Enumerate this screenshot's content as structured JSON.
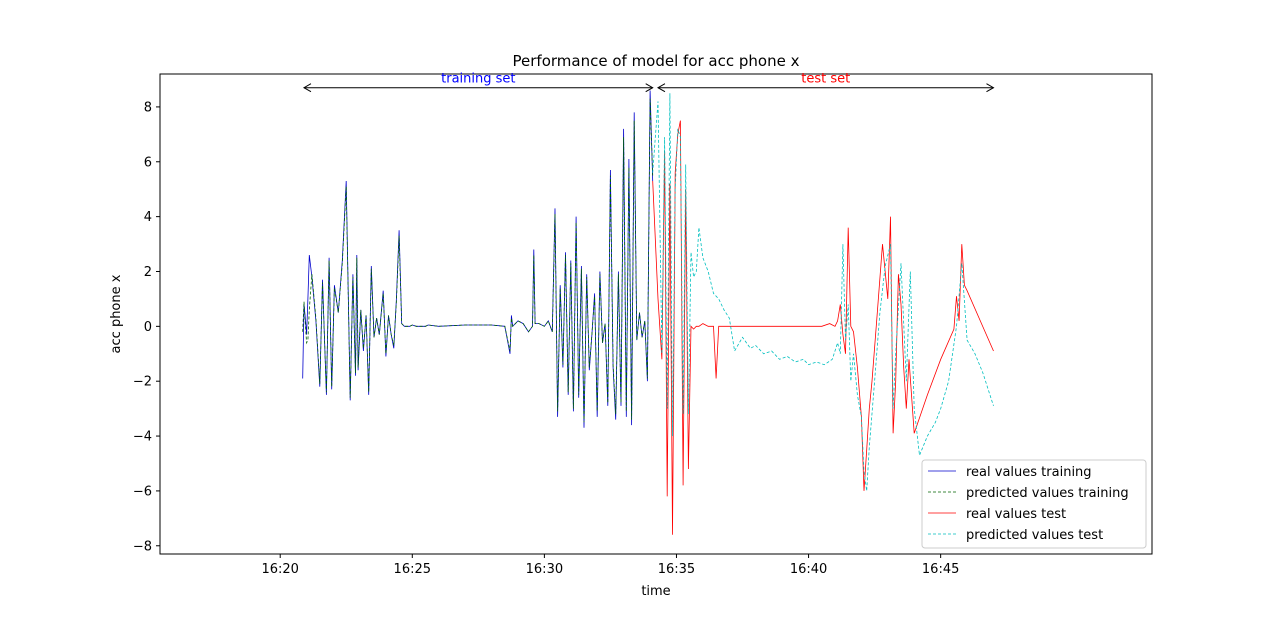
{
  "chart_data": {
    "type": "line",
    "title": "Performance of model for acc phone x",
    "xlabel": "time",
    "ylabel": "acc phone x",
    "x_unit": "minutes after 16:00",
    "xlim": [
      15.45,
      53.0
    ],
    "ylim": [
      -8.3,
      9.2
    ],
    "xticks": [
      20,
      25,
      30,
      35,
      40,
      45
    ],
    "xtick_labels": [
      "16:20",
      "16:25",
      "16:30",
      "16:35",
      "16:40",
      "16:45"
    ],
    "yticks": [
      -8,
      -6,
      -4,
      -2,
      0,
      2,
      4,
      6,
      8
    ],
    "ytick_labels": [
      "−8",
      "−6",
      "−4",
      "−2",
      "0",
      "2",
      "4",
      "6",
      "8"
    ],
    "grid": false,
    "legend": {
      "position": "lower-right",
      "entries": [
        "real values training",
        "predicted values training",
        "real values test",
        "predicted values test"
      ]
    },
    "annotations": [
      {
        "text": "training set",
        "color": "#0000ff",
        "x_start": 20.9,
        "x_end": 34.1,
        "y": 8.7
      },
      {
        "text": "test set",
        "color": "#ff0000",
        "x_start": 34.3,
        "x_end": 47.0,
        "y": 8.7
      }
    ],
    "series": [
      {
        "name": "real values training",
        "color": "#0000cc",
        "dash": "",
        "x": [
          20.85,
          20.9,
          20.95,
          21.0,
          21.05,
          21.1,
          21.2,
          21.35,
          21.5,
          21.6,
          21.75,
          21.85,
          21.95,
          22.05,
          22.2,
          22.35,
          22.5,
          22.65,
          22.75,
          22.85,
          22.9,
          22.95,
          23.05,
          23.15,
          23.25,
          23.35,
          23.45,
          23.55,
          23.65,
          23.75,
          23.9,
          24.0,
          24.1,
          24.2,
          24.3,
          24.4,
          24.5,
          24.6,
          24.7,
          24.8,
          24.9,
          25.0,
          25.15,
          25.3,
          25.4,
          25.5,
          25.6,
          26.0,
          27.0,
          28.0,
          28.5,
          28.7,
          28.75,
          28.8,
          29.0,
          29.2,
          29.4,
          29.55,
          29.6,
          29.65,
          29.8,
          30.0,
          30.15,
          30.3,
          30.4,
          30.5,
          30.6,
          30.7,
          30.8,
          30.9,
          31.0,
          31.1,
          31.2,
          31.3,
          31.4,
          31.5,
          31.6,
          31.7,
          31.8,
          31.9,
          32.0,
          32.1,
          32.2,
          32.3,
          32.4,
          32.5,
          32.6,
          32.7,
          32.8,
          32.9,
          33.0,
          33.1,
          33.2,
          33.3,
          33.4,
          33.5,
          33.6,
          33.7,
          33.8,
          33.9,
          34.0,
          34.1
        ],
        "y": [
          -1.9,
          0.8,
          0.3,
          -0.3,
          1.0,
          2.6,
          1.8,
          0.2,
          -2.2,
          1.7,
          -2.5,
          2.5,
          -2.3,
          1.5,
          0.5,
          2.4,
          5.3,
          -2.7,
          1.9,
          -1.8,
          2.6,
          -1.6,
          0.6,
          -0.9,
          0.4,
          -2.5,
          2.2,
          -0.4,
          0.3,
          -0.3,
          1.3,
          -1.1,
          0.4,
          -0.3,
          -0.8,
          1.0,
          3.5,
          0.1,
          0.0,
          0.0,
          0.0,
          0.05,
          0.0,
          0.0,
          0.0,
          0.0,
          0.05,
          0.0,
          0.05,
          0.05,
          0.0,
          -1.0,
          0.4,
          0.0,
          0.2,
          0.1,
          -0.2,
          0.0,
          2.8,
          0.1,
          0.1,
          0.0,
          0.2,
          -0.2,
          4.3,
          -3.3,
          1.5,
          -1.5,
          2.7,
          -2.5,
          2.4,
          -3.1,
          4.0,
          -2.6,
          2.2,
          -3.7,
          1.9,
          -1.6,
          -0.3,
          1.2,
          -3.3,
          2.0,
          -0.6,
          0.1,
          -2.9,
          5.7,
          -1.5,
          -3.4,
          2.0,
          -2.9,
          7.2,
          -3.3,
          6.1,
          -3.6,
          7.8,
          -0.5,
          0.5,
          -0.4,
          0.2,
          -2.0,
          8.6,
          5.3
        ]
      },
      {
        "name": "predicted values training",
        "color": "#006400",
        "dash": "3,2",
        "x": [
          20.85,
          20.9,
          20.95,
          21.0,
          21.05,
          21.1,
          21.2,
          21.35,
          21.5,
          21.6,
          21.75,
          21.85,
          21.95,
          22.05,
          22.2,
          22.35,
          22.5,
          22.65,
          22.75,
          22.85,
          22.9,
          22.95,
          23.05,
          23.15,
          23.25,
          23.35,
          23.45,
          23.55,
          23.65,
          23.75,
          23.9,
          24.0,
          24.1,
          24.2,
          24.3,
          24.4,
          24.5,
          24.6,
          24.7,
          24.8,
          24.9,
          25.0,
          25.15,
          25.3,
          25.4,
          25.5,
          25.6,
          26.0,
          27.0,
          28.0,
          28.5,
          28.7,
          28.75,
          28.8,
          29.0,
          29.2,
          29.4,
          29.55,
          29.6,
          29.65,
          29.8,
          30.0,
          30.15,
          30.3,
          30.4,
          30.5,
          30.6,
          30.7,
          30.8,
          30.9,
          31.0,
          31.1,
          31.2,
          31.3,
          31.4,
          31.5,
          31.6,
          31.7,
          31.8,
          31.9,
          32.0,
          32.1,
          32.2,
          32.3,
          32.4,
          32.5,
          32.6,
          32.7,
          32.8,
          32.9,
          33.0,
          33.1,
          33.2,
          33.3,
          33.4,
          33.5,
          33.6,
          33.7,
          33.8,
          33.9,
          34.0,
          34.1
        ],
        "y": [
          -0.2,
          0.9,
          0.1,
          -0.6,
          -0.5,
          0.6,
          1.9,
          0.3,
          -2.1,
          1.6,
          -2.4,
          2.4,
          -2.2,
          1.4,
          0.5,
          2.3,
          5.1,
          -2.6,
          1.8,
          -1.7,
          2.5,
          -1.5,
          0.6,
          -0.8,
          0.4,
          -2.4,
          2.1,
          -0.4,
          0.3,
          -0.3,
          1.2,
          -1.0,
          0.4,
          -0.3,
          -0.7,
          0.9,
          3.3,
          0.1,
          0.0,
          0.0,
          0.0,
          0.05,
          0.0,
          0.0,
          0.0,
          0.0,
          0.05,
          0.0,
          0.05,
          0.05,
          0.0,
          -0.9,
          0.3,
          0.0,
          0.2,
          0.1,
          -0.2,
          0.0,
          2.6,
          0.1,
          0.1,
          0.0,
          0.2,
          -0.2,
          4.1,
          -3.1,
          1.4,
          -1.4,
          2.6,
          -2.4,
          2.3,
          -3.0,
          3.8,
          -2.5,
          2.1,
          -3.5,
          1.8,
          -1.5,
          -0.3,
          1.1,
          -3.1,
          1.9,
          -0.6,
          0.1,
          -2.8,
          5.5,
          -1.4,
          -3.2,
          1.9,
          -2.8,
          6.9,
          -3.1,
          5.8,
          -3.4,
          7.5,
          -0.5,
          0.5,
          -0.4,
          0.2,
          -1.9,
          8.3,
          5.5
        ]
      },
      {
        "name": "real values test",
        "color": "#ff0000",
        "dash": "",
        "x": [
          34.1,
          34.3,
          34.45,
          34.55,
          34.65,
          34.75,
          34.85,
          34.95,
          35.05,
          35.15,
          35.25,
          35.35,
          35.45,
          35.55,
          35.65,
          35.75,
          35.85,
          36.0,
          36.2,
          36.4,
          36.5,
          36.6,
          36.7,
          37.0,
          38.0,
          39.0,
          40.0,
          40.5,
          40.8,
          41.0,
          41.1,
          41.2,
          41.3,
          41.4,
          41.5,
          41.6,
          41.7,
          41.85,
          42.0,
          42.1,
          42.2,
          42.3,
          42.4,
          42.6,
          42.8,
          43.0,
          43.1,
          43.2,
          43.3,
          43.4,
          43.5,
          43.6,
          43.7,
          43.8,
          44.0,
          44.5,
          45.0,
          45.5,
          45.6,
          45.7,
          45.8,
          45.9,
          46.0,
          46.5,
          47.0
        ],
        "y": [
          5.3,
          1.0,
          -1.2,
          6.4,
          -6.2,
          5.2,
          -7.6,
          5.6,
          7.0,
          7.5,
          -5.8,
          5.0,
          -5.2,
          0.0,
          -0.1,
          0.0,
          0.0,
          0.1,
          0.0,
          0.0,
          -1.9,
          0.0,
          0.0,
          0.0,
          0.0,
          0.0,
          0.0,
          0.0,
          0.1,
          0.0,
          0.2,
          0.8,
          -0.3,
          -1.0,
          3.6,
          0.0,
          -0.2,
          -1.5,
          -3.3,
          -6.0,
          -4.5,
          -3.0,
          -2.0,
          0.5,
          3.0,
          1.0,
          4.0,
          -3.9,
          -2.0,
          1.9,
          0.8,
          -1.5,
          -3.0,
          -1.2,
          -3.9,
          -2.5,
          -1.2,
          -0.1,
          1.1,
          0.2,
          3.0,
          1.5,
          1.3,
          0.2,
          -0.9
        ]
      },
      {
        "name": "predicted values test",
        "color": "#00bfbf",
        "dash": "3,2",
        "x": [
          34.1,
          34.3,
          34.45,
          34.55,
          34.65,
          34.75,
          34.85,
          34.95,
          35.05,
          35.15,
          35.25,
          35.35,
          35.45,
          35.55,
          35.65,
          35.75,
          35.85,
          36.0,
          36.2,
          36.4,
          36.6,
          36.8,
          37.0,
          37.2,
          37.5,
          37.8,
          38.0,
          38.3,
          38.6,
          38.9,
          39.2,
          39.5,
          39.8,
          40.0,
          40.3,
          40.6,
          40.9,
          41.1,
          41.2,
          41.3,
          41.4,
          41.5,
          41.6,
          41.7,
          41.85,
          42.0,
          42.1,
          42.2,
          42.3,
          42.5,
          42.7,
          42.9,
          43.1,
          43.2,
          43.3,
          43.5,
          43.7,
          43.85,
          44.0,
          44.2,
          44.5,
          44.8,
          45.0,
          45.3,
          45.6,
          45.8,
          46.0,
          46.3,
          46.6,
          47.0
        ],
        "y": [
          5.6,
          8.2,
          -1.0,
          6.9,
          -3.0,
          8.5,
          -4.0,
          5.0,
          7.2,
          6.9,
          -3.2,
          5.9,
          -3.2,
          2.7,
          1.8,
          2.0,
          3.6,
          2.5,
          2.0,
          1.2,
          1.0,
          0.6,
          0.3,
          -0.9,
          -0.4,
          -0.8,
          -0.7,
          -1.0,
          -0.9,
          -1.2,
          -1.1,
          -1.3,
          -1.2,
          -1.4,
          -1.3,
          -1.4,
          -1.2,
          -0.6,
          -1.0,
          3.0,
          -0.5,
          0.8,
          -2.0,
          -1.0,
          -2.5,
          -3.3,
          -5.3,
          -6.0,
          -4.4,
          -2.0,
          0.5,
          2.2,
          3.0,
          -3.0,
          -1.0,
          2.3,
          -2.0,
          2.0,
          -3.0,
          -4.7,
          -4.0,
          -3.5,
          -3.0,
          -2.0,
          0.0,
          2.3,
          -0.5,
          -1.0,
          -1.7,
          -2.9
        ]
      }
    ]
  }
}
